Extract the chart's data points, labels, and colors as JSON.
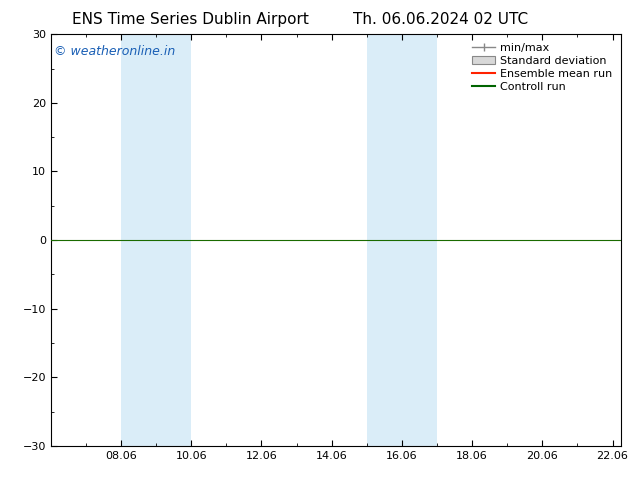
{
  "title_left": "ENS Time Series Dublin Airport",
  "title_right": "Th. 06.06.2024 02 UTC",
  "ylim": [
    -30,
    30
  ],
  "yticks": [
    -30,
    -20,
    -10,
    0,
    10,
    20,
    30
  ],
  "xtick_labels": [
    "08.06",
    "10.06",
    "12.06",
    "14.06",
    "16.06",
    "18.06",
    "20.06",
    "22.06"
  ],
  "xtick_positions": [
    2,
    4,
    6,
    8,
    10,
    12,
    14,
    16
  ],
  "x_min": 0,
  "x_max": 16.25,
  "shaded_bands": [
    {
      "x_start": 2.0,
      "x_end": 3.0
    },
    {
      "x_start": 3.0,
      "x_end": 4.0
    },
    {
      "x_start": 9.0,
      "x_end": 10.0
    },
    {
      "x_start": 10.0,
      "x_end": 11.0
    }
  ],
  "shaded_color": "#daedf8",
  "hline_y": 0,
  "hline_color": "#1a6b00",
  "hline_lw": 0.8,
  "watermark_text": "© weatheronline.in",
  "watermark_color": "#1a5fb5",
  "bg_color": "#ffffff",
  "plot_bg_color": "#ffffff",
  "spine_color": "#000000",
  "tick_color": "#000000",
  "fontsize_title": 11,
  "fontsize_legend": 8,
  "fontsize_ticks": 8,
  "fontsize_watermark": 9,
  "legend_minmax_color": "#888888",
  "legend_std_facecolor": "#d8d8d8",
  "legend_std_edgecolor": "#888888",
  "legend_ens_color": "#ff2200",
  "legend_ctrl_color": "#006400"
}
